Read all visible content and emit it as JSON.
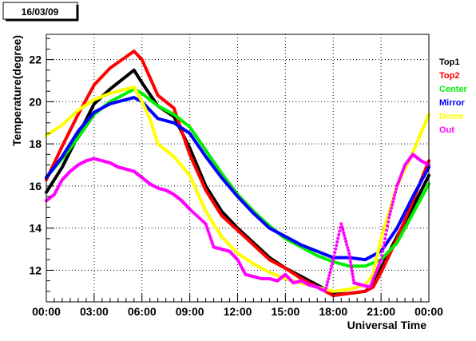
{
  "chart_data": {
    "type": "line",
    "date_label": "16/03/09",
    "xlabel": "Universal Time",
    "ylabel": "Temperature(degree)",
    "xlim": [
      0,
      24
    ],
    "ylim": [
      10.5,
      23.2
    ],
    "grid": true,
    "legend_position": "right",
    "x_ticks": [
      {
        "value": 0,
        "label": "00:00"
      },
      {
        "value": 3,
        "label": "03:00"
      },
      {
        "value": 6,
        "label": "06:00"
      },
      {
        "value": 9,
        "label": "09:00"
      },
      {
        "value": 12,
        "label": "12:00"
      },
      {
        "value": 15,
        "label": "15:00"
      },
      {
        "value": 18,
        "label": "18:00"
      },
      {
        "value": 21,
        "label": "21:00"
      },
      {
        "value": 24,
        "label": "00:00"
      }
    ],
    "y_ticks": [
      {
        "value": 12,
        "label": "12"
      },
      {
        "value": 14,
        "label": "14"
      },
      {
        "value": 16,
        "label": "16"
      },
      {
        "value": 18,
        "label": "18"
      },
      {
        "value": 20,
        "label": "20"
      },
      {
        "value": 22,
        "label": "22"
      }
    ],
    "series": [
      {
        "name": "Top1",
        "color": "#000000",
        "style": "line",
        "points": [
          [
            0,
            15.7
          ],
          [
            1,
            16.9
          ],
          [
            2,
            18.4
          ],
          [
            3,
            19.9
          ],
          [
            4,
            20.6
          ],
          [
            5.5,
            21.5
          ],
          [
            6,
            20.9
          ],
          [
            7,
            19.8
          ],
          [
            8,
            19.3
          ],
          [
            9,
            17.8
          ],
          [
            10,
            16.0
          ],
          [
            11,
            14.8
          ],
          [
            12,
            14.0
          ],
          [
            13,
            13.3
          ],
          [
            14,
            12.6
          ],
          [
            15,
            12.1
          ],
          [
            16,
            11.7
          ],
          [
            17,
            11.3
          ],
          [
            17.5,
            11.1
          ],
          [
            18,
            10.85
          ],
          [
            19,
            10.9
          ],
          [
            20,
            11.0
          ],
          [
            20.5,
            11.3
          ],
          [
            21,
            12.1
          ],
          [
            22,
            13.6
          ],
          [
            23,
            15.0
          ],
          [
            24,
            16.5
          ]
        ]
      },
      {
        "name": "Top2",
        "color": "#ff0000",
        "style": "line",
        "points": [
          [
            0,
            16.3
          ],
          [
            1,
            17.9
          ],
          [
            2,
            19.4
          ],
          [
            3,
            20.8
          ],
          [
            4,
            21.6
          ],
          [
            5.5,
            22.4
          ],
          [
            6,
            22.0
          ],
          [
            7,
            20.3
          ],
          [
            8,
            19.7
          ],
          [
            9,
            17.5
          ],
          [
            10,
            15.8
          ],
          [
            11,
            14.6
          ],
          [
            12,
            13.9
          ],
          [
            13,
            13.2
          ],
          [
            14,
            12.5
          ],
          [
            15,
            12.1
          ],
          [
            16,
            11.6
          ],
          [
            17,
            11.2
          ],
          [
            17.5,
            11.0
          ],
          [
            18,
            10.8
          ],
          [
            19,
            10.9
          ],
          [
            20,
            11.0
          ],
          [
            20.5,
            11.2
          ],
          [
            21,
            11.9
          ],
          [
            22,
            13.5
          ],
          [
            23,
            15.3
          ],
          [
            24,
            17.2
          ]
        ]
      },
      {
        "name": "Center",
        "color": "#00ee00",
        "style": "line",
        "points": [
          [
            0,
            16.4
          ],
          [
            1,
            17.3
          ],
          [
            2,
            18.3
          ],
          [
            3,
            19.4
          ],
          [
            4,
            20.0
          ],
          [
            5.5,
            20.6
          ],
          [
            6,
            20.4
          ],
          [
            7,
            19.8
          ],
          [
            8,
            19.4
          ],
          [
            9,
            18.8
          ],
          [
            10,
            17.7
          ],
          [
            11,
            16.6
          ],
          [
            12,
            15.6
          ],
          [
            13,
            14.8
          ],
          [
            14,
            14.1
          ],
          [
            15,
            13.5
          ],
          [
            16,
            13.1
          ],
          [
            17,
            12.7
          ],
          [
            18,
            12.4
          ],
          [
            19,
            12.2
          ],
          [
            20,
            12.2
          ],
          [
            21,
            12.5
          ],
          [
            22,
            13.3
          ],
          [
            23,
            14.7
          ],
          [
            24,
            16.1
          ]
        ]
      },
      {
        "name": "Mirror",
        "color": "#0000ff",
        "style": "line",
        "points": [
          [
            0,
            16.4
          ],
          [
            1,
            17.4
          ],
          [
            2,
            18.6
          ],
          [
            3,
            19.5
          ],
          [
            4,
            19.9
          ],
          [
            5.5,
            20.2
          ],
          [
            6,
            20.0
          ],
          [
            7,
            19.2
          ],
          [
            8,
            19.0
          ],
          [
            9,
            18.5
          ],
          [
            10,
            17.4
          ],
          [
            11,
            16.4
          ],
          [
            12,
            15.5
          ],
          [
            13,
            14.7
          ],
          [
            14,
            14.0
          ],
          [
            15,
            13.6
          ],
          [
            16,
            13.2
          ],
          [
            17,
            12.9
          ],
          [
            18,
            12.6
          ],
          [
            19,
            12.6
          ],
          [
            20,
            12.5
          ],
          [
            21,
            12.9
          ],
          [
            22,
            14.0
          ],
          [
            23,
            15.5
          ],
          [
            24,
            16.9
          ]
        ]
      },
      {
        "name": "Dome",
        "color": "#ffff00",
        "style": "line",
        "points": [
          [
            0,
            18.4
          ],
          [
            1,
            18.9
          ],
          [
            2,
            19.6
          ],
          [
            3,
            20.1
          ],
          [
            4,
            20.4
          ],
          [
            5.5,
            20.7
          ],
          [
            6,
            20.0
          ],
          [
            6.5,
            19.2
          ],
          [
            7,
            18.0
          ],
          [
            8,
            17.4
          ],
          [
            9,
            16.5
          ],
          [
            10,
            14.8
          ],
          [
            11,
            13.6
          ],
          [
            12,
            12.8
          ],
          [
            13,
            12.3
          ],
          [
            14,
            11.9
          ],
          [
            15,
            11.6
          ],
          [
            16,
            11.4
          ],
          [
            17,
            11.2
          ],
          [
            18,
            11.0
          ],
          [
            19,
            11.1
          ],
          [
            20,
            11.3
          ],
          [
            20.5,
            11.8
          ],
          [
            21,
            13.5
          ],
          [
            22,
            16.0
          ],
          [
            23,
            17.6
          ],
          [
            24,
            19.4
          ]
        ]
      },
      {
        "name": "Out",
        "color": "#ff00ff",
        "style": "dots",
        "points": [
          [
            0,
            15.3
          ],
          [
            0.5,
            15.6
          ],
          [
            1,
            16.3
          ],
          [
            1.5,
            16.7
          ],
          [
            2,
            17.0
          ],
          [
            2.5,
            17.2
          ],
          [
            3,
            17.3
          ],
          [
            3.5,
            17.2
          ],
          [
            4,
            17.1
          ],
          [
            4.5,
            16.9
          ],
          [
            5,
            16.8
          ],
          [
            5.5,
            16.7
          ],
          [
            6,
            16.4
          ],
          [
            6.5,
            16.1
          ],
          [
            7,
            15.9
          ],
          [
            7.5,
            15.8
          ],
          [
            8,
            15.6
          ],
          [
            8.5,
            15.3
          ],
          [
            9,
            14.9
          ],
          [
            10,
            14.2
          ],
          [
            10.5,
            13.1
          ],
          [
            11,
            13.0
          ],
          [
            11.5,
            12.9
          ],
          [
            12,
            12.5
          ],
          [
            12.5,
            11.8
          ],
          [
            13,
            11.7
          ],
          [
            13.5,
            11.6
          ],
          [
            14,
            11.6
          ],
          [
            14.5,
            11.5
          ],
          [
            15,
            11.8
          ],
          [
            15.5,
            11.4
          ],
          [
            16,
            11.5
          ],
          [
            16.5,
            11.3
          ],
          [
            17,
            11.2
          ],
          [
            17.5,
            11.0
          ],
          [
            18,
            12.5
          ],
          [
            18.5,
            14.2
          ],
          [
            19,
            12.8
          ],
          [
            19.3,
            11.4
          ],
          [
            19.8,
            11.3
          ],
          [
            20.3,
            11.2
          ],
          [
            21,
            12.5
          ],
          [
            21.5,
            14.5
          ],
          [
            22,
            16.0
          ],
          [
            22.5,
            17.0
          ],
          [
            23,
            17.5
          ],
          [
            23.5,
            17.2
          ],
          [
            24,
            17.0
          ]
        ]
      }
    ]
  }
}
